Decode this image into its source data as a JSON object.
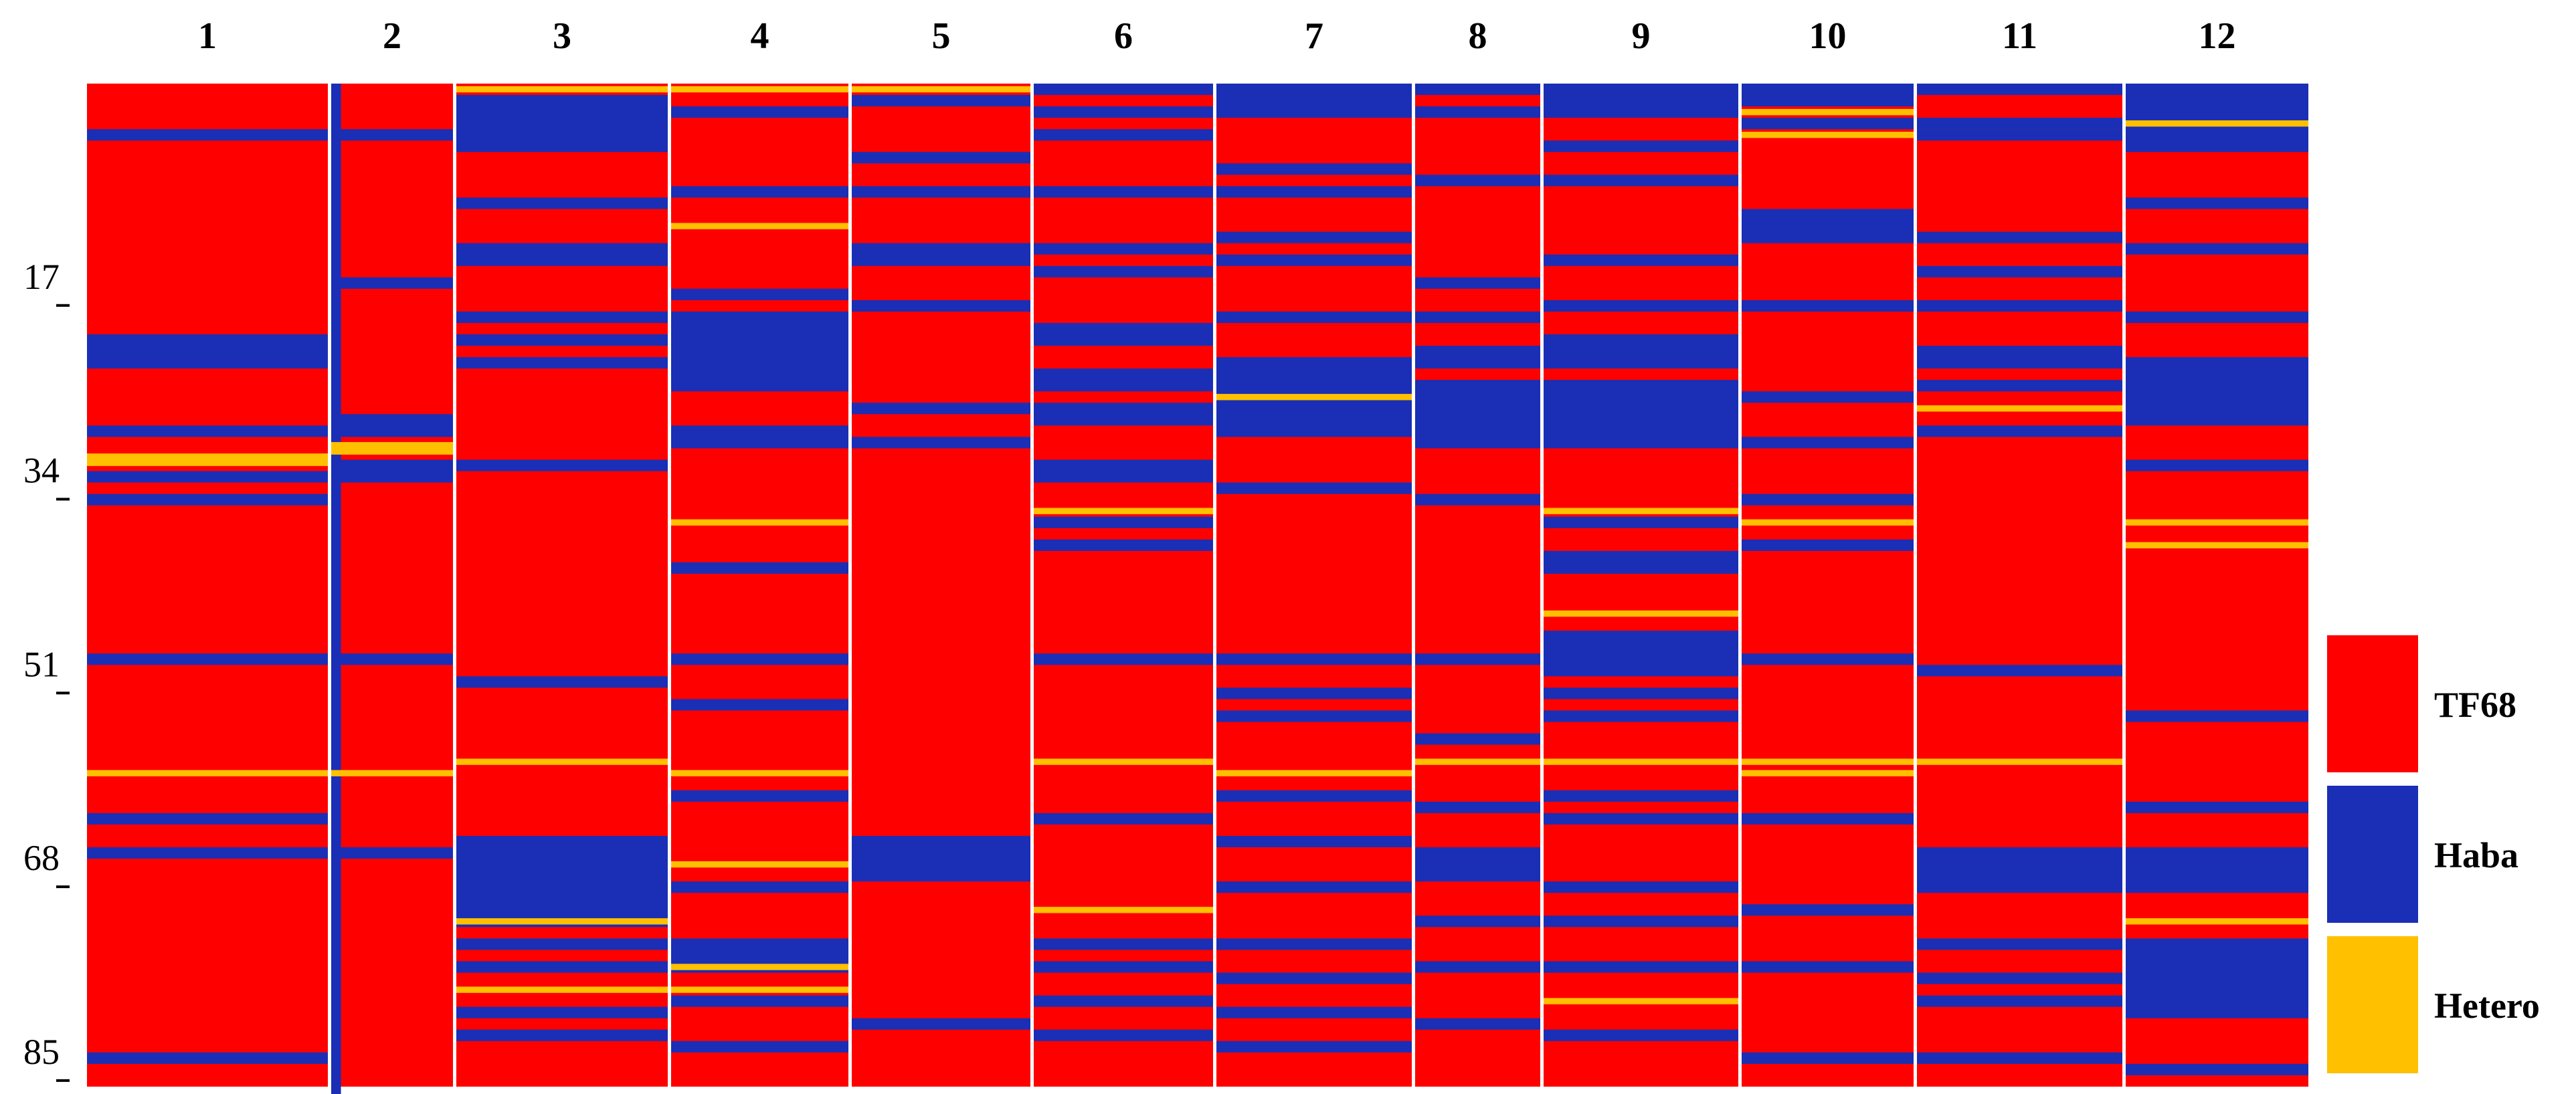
{
  "chart_data": {
    "type": "heatmap",
    "title": "",
    "xlabel": "",
    "ylabel": "",
    "columns": [
      "1",
      "2",
      "3",
      "4",
      "5",
      "6",
      "7",
      "8",
      "9",
      "10",
      "11",
      "12"
    ],
    "row_ticks": [
      "17",
      "34",
      "51",
      "68",
      "85"
    ],
    "row_tick_values": [
      17,
      34,
      51,
      68,
      85
    ],
    "row_count": 88,
    "legend": [
      {
        "key": "A",
        "label": "TF68",
        "color": "#FF0000"
      },
      {
        "key": "B",
        "label": "Haba",
        "color": "#1A2FB5"
      },
      {
        "key": "H",
        "label": "Hetero",
        "color": "#FFC000"
      }
    ],
    "legend_placement": "right",
    "grid": false,
    "genotype_bands": [
      {
        "column": "1",
        "default": "A",
        "bands": [
          [
            4,
            4,
            "B"
          ],
          [
            22,
            22,
            "B"
          ],
          [
            23,
            24,
            "B"
          ],
          [
            30,
            30,
            "B"
          ],
          [
            32,
            33,
            "H"
          ],
          [
            34,
            34,
            "B"
          ],
          [
            36,
            36,
            "B"
          ],
          [
            50,
            50,
            "B"
          ],
          [
            60,
            60,
            "H"
          ],
          [
            64,
            64,
            "B"
          ],
          [
            67,
            67,
            "B"
          ],
          [
            85,
            85,
            "B"
          ]
        ]
      },
      {
        "column": "2",
        "default": "A",
        "bands": [
          [
            0,
            88,
            "B",
            0.0,
            0.08
          ],
          [
            4,
            4,
            "B"
          ],
          [
            17,
            17,
            "B"
          ],
          [
            29,
            30,
            "B"
          ],
          [
            31,
            32,
            "H"
          ],
          [
            33,
            34,
            "B"
          ],
          [
            50,
            50,
            "B"
          ],
          [
            60,
            60,
            "H"
          ],
          [
            67,
            67,
            "B"
          ]
        ]
      },
      {
        "column": "3",
        "default": "A",
        "bands": [
          [
            0,
            0,
            "H"
          ],
          [
            1,
            5,
            "B"
          ],
          [
            10,
            10,
            "B"
          ],
          [
            14,
            15,
            "B"
          ],
          [
            20,
            20,
            "B"
          ],
          [
            22,
            22,
            "B"
          ],
          [
            24,
            24,
            "B"
          ],
          [
            33,
            33,
            "B"
          ],
          [
            52,
            52,
            "B"
          ],
          [
            59,
            59,
            "H"
          ],
          [
            66,
            73,
            "B"
          ],
          [
            73,
            73,
            "H"
          ],
          [
            75,
            75,
            "B"
          ],
          [
            77,
            77,
            "B"
          ],
          [
            79,
            79,
            "H"
          ],
          [
            81,
            81,
            "B"
          ],
          [
            83,
            83,
            "B"
          ]
        ]
      },
      {
        "column": "4",
        "default": "A",
        "bands": [
          [
            0,
            0,
            "H"
          ],
          [
            2,
            2,
            "B"
          ],
          [
            9,
            9,
            "B"
          ],
          [
            12,
            12,
            "H"
          ],
          [
            18,
            18,
            "B"
          ],
          [
            20,
            20,
            "B"
          ],
          [
            21,
            26,
            "B"
          ],
          [
            30,
            31,
            "B"
          ],
          [
            38,
            38,
            "H"
          ],
          [
            42,
            42,
            "B"
          ],
          [
            50,
            50,
            "B"
          ],
          [
            54,
            54,
            "B"
          ],
          [
            60,
            60,
            "H"
          ],
          [
            62,
            62,
            "B"
          ],
          [
            68,
            68,
            "H"
          ],
          [
            70,
            70,
            "B"
          ],
          [
            75,
            77,
            "B"
          ],
          [
            77,
            77,
            "H"
          ],
          [
            79,
            79,
            "H"
          ],
          [
            80,
            80,
            "B"
          ],
          [
            84,
            84,
            "B"
          ]
        ]
      },
      {
        "column": "5",
        "default": "A",
        "bands": [
          [
            0,
            0,
            "H"
          ],
          [
            1,
            1,
            "B"
          ],
          [
            6,
            6,
            "B"
          ],
          [
            9,
            9,
            "B"
          ],
          [
            14,
            15,
            "B"
          ],
          [
            19,
            19,
            "B"
          ],
          [
            28,
            28,
            "B"
          ],
          [
            31,
            31,
            "B"
          ],
          [
            66,
            69,
            "B"
          ],
          [
            82,
            82,
            "B"
          ]
        ]
      },
      {
        "column": "6",
        "default": "A",
        "bands": [
          [
            0,
            0,
            "B"
          ],
          [
            2,
            2,
            "B"
          ],
          [
            4,
            4,
            "B"
          ],
          [
            9,
            9,
            "B"
          ],
          [
            14,
            14,
            "B"
          ],
          [
            16,
            16,
            "B"
          ],
          [
            21,
            22,
            "B"
          ],
          [
            25,
            26,
            "B"
          ],
          [
            28,
            29,
            "B"
          ],
          [
            33,
            34,
            "B"
          ],
          [
            37,
            37,
            "H"
          ],
          [
            38,
            38,
            "B"
          ],
          [
            40,
            40,
            "B"
          ],
          [
            50,
            50,
            "B"
          ],
          [
            59,
            59,
            "H"
          ],
          [
            64,
            64,
            "B"
          ],
          [
            72,
            72,
            "H"
          ],
          [
            75,
            75,
            "B"
          ],
          [
            77,
            77,
            "B"
          ],
          [
            80,
            80,
            "B"
          ],
          [
            83,
            83,
            "B"
          ]
        ]
      },
      {
        "column": "7",
        "default": "A",
        "bands": [
          [
            0,
            2,
            "B"
          ],
          [
            7,
            7,
            "B"
          ],
          [
            9,
            9,
            "B"
          ],
          [
            13,
            13,
            "B"
          ],
          [
            15,
            15,
            "B"
          ],
          [
            20,
            20,
            "B"
          ],
          [
            24,
            30,
            "B"
          ],
          [
            27,
            27,
            "H"
          ],
          [
            35,
            35,
            "B"
          ],
          [
            50,
            50,
            "B"
          ],
          [
            53,
            53,
            "B"
          ],
          [
            55,
            55,
            "B"
          ],
          [
            60,
            60,
            "H"
          ],
          [
            62,
            62,
            "B"
          ],
          [
            66,
            66,
            "B"
          ],
          [
            70,
            70,
            "B"
          ],
          [
            75,
            75,
            "B"
          ],
          [
            78,
            78,
            "B"
          ],
          [
            81,
            81,
            "B"
          ],
          [
            84,
            84,
            "B"
          ]
        ]
      },
      {
        "column": "8",
        "default": "A",
        "bands": [
          [
            0,
            0,
            "B"
          ],
          [
            2,
            2,
            "B"
          ],
          [
            8,
            8,
            "B"
          ],
          [
            17,
            17,
            "B"
          ],
          [
            20,
            20,
            "B"
          ],
          [
            23,
            24,
            "B"
          ],
          [
            26,
            31,
            "B"
          ],
          [
            36,
            36,
            "B"
          ],
          [
            50,
            50,
            "B"
          ],
          [
            57,
            57,
            "B"
          ],
          [
            59,
            59,
            "H"
          ],
          [
            63,
            63,
            "B"
          ],
          [
            67,
            69,
            "B"
          ],
          [
            73,
            73,
            "B"
          ],
          [
            77,
            77,
            "B"
          ],
          [
            82,
            82,
            "B"
          ]
        ]
      },
      {
        "column": "9",
        "default": "A",
        "bands": [
          [
            0,
            2,
            "B"
          ],
          [
            5,
            5,
            "B"
          ],
          [
            8,
            8,
            "B"
          ],
          [
            15,
            15,
            "B"
          ],
          [
            19,
            19,
            "B"
          ],
          [
            22,
            24,
            "B"
          ],
          [
            26,
            31,
            "B"
          ],
          [
            37,
            37,
            "H"
          ],
          [
            38,
            38,
            "B"
          ],
          [
            41,
            42,
            "B"
          ],
          [
            46,
            46,
            "H"
          ],
          [
            48,
            51,
            "B"
          ],
          [
            53,
            53,
            "B"
          ],
          [
            55,
            55,
            "B"
          ],
          [
            59,
            59,
            "H"
          ],
          [
            62,
            62,
            "B"
          ],
          [
            64,
            64,
            "B"
          ],
          [
            70,
            70,
            "B"
          ],
          [
            73,
            73,
            "B"
          ],
          [
            77,
            77,
            "B"
          ],
          [
            80,
            80,
            "H"
          ],
          [
            83,
            83,
            "B"
          ]
        ]
      },
      {
        "column": "10",
        "default": "A",
        "bands": [
          [
            0,
            1,
            "B"
          ],
          [
            2,
            2,
            "H"
          ],
          [
            3,
            3,
            "B"
          ],
          [
            4,
            4,
            "H"
          ],
          [
            11,
            13,
            "B"
          ],
          [
            19,
            19,
            "B"
          ],
          [
            27,
            27,
            "B"
          ],
          [
            31,
            31,
            "B"
          ],
          [
            36,
            36,
            "B"
          ],
          [
            38,
            38,
            "H"
          ],
          [
            40,
            40,
            "B"
          ],
          [
            50,
            50,
            "B"
          ],
          [
            59,
            59,
            "H"
          ],
          [
            60,
            60,
            "H"
          ],
          [
            64,
            64,
            "B"
          ],
          [
            72,
            72,
            "B"
          ],
          [
            77,
            77,
            "B"
          ],
          [
            85,
            85,
            "B"
          ]
        ]
      },
      {
        "column": "11",
        "default": "A",
        "bands": [
          [
            0,
            0,
            "B"
          ],
          [
            3,
            3,
            "B"
          ],
          [
            4,
            4,
            "B"
          ],
          [
            13,
            13,
            "B"
          ],
          [
            16,
            16,
            "B"
          ],
          [
            19,
            19,
            "B"
          ],
          [
            23,
            24,
            "B"
          ],
          [
            26,
            26,
            "B"
          ],
          [
            28,
            28,
            "H"
          ],
          [
            30,
            30,
            "B"
          ],
          [
            51,
            51,
            "B"
          ],
          [
            59,
            59,
            "H"
          ],
          [
            67,
            70,
            "B"
          ],
          [
            75,
            75,
            "B"
          ],
          [
            78,
            78,
            "B"
          ],
          [
            80,
            80,
            "B"
          ],
          [
            85,
            85,
            "B"
          ]
        ]
      },
      {
        "column": "12",
        "default": "A",
        "bands": [
          [
            0,
            5,
            "B"
          ],
          [
            3,
            3,
            "H"
          ],
          [
            10,
            10,
            "B"
          ],
          [
            14,
            14,
            "B"
          ],
          [
            20,
            20,
            "B"
          ],
          [
            24,
            29,
            "B"
          ],
          [
            33,
            33,
            "B"
          ],
          [
            38,
            38,
            "H"
          ],
          [
            40,
            40,
            "H"
          ],
          [
            55,
            55,
            "B"
          ],
          [
            63,
            63,
            "B"
          ],
          [
            67,
            70,
            "B"
          ],
          [
            73,
            73,
            "H"
          ],
          [
            75,
            81,
            "B"
          ],
          [
            86,
            86,
            "B"
          ]
        ]
      }
    ]
  }
}
